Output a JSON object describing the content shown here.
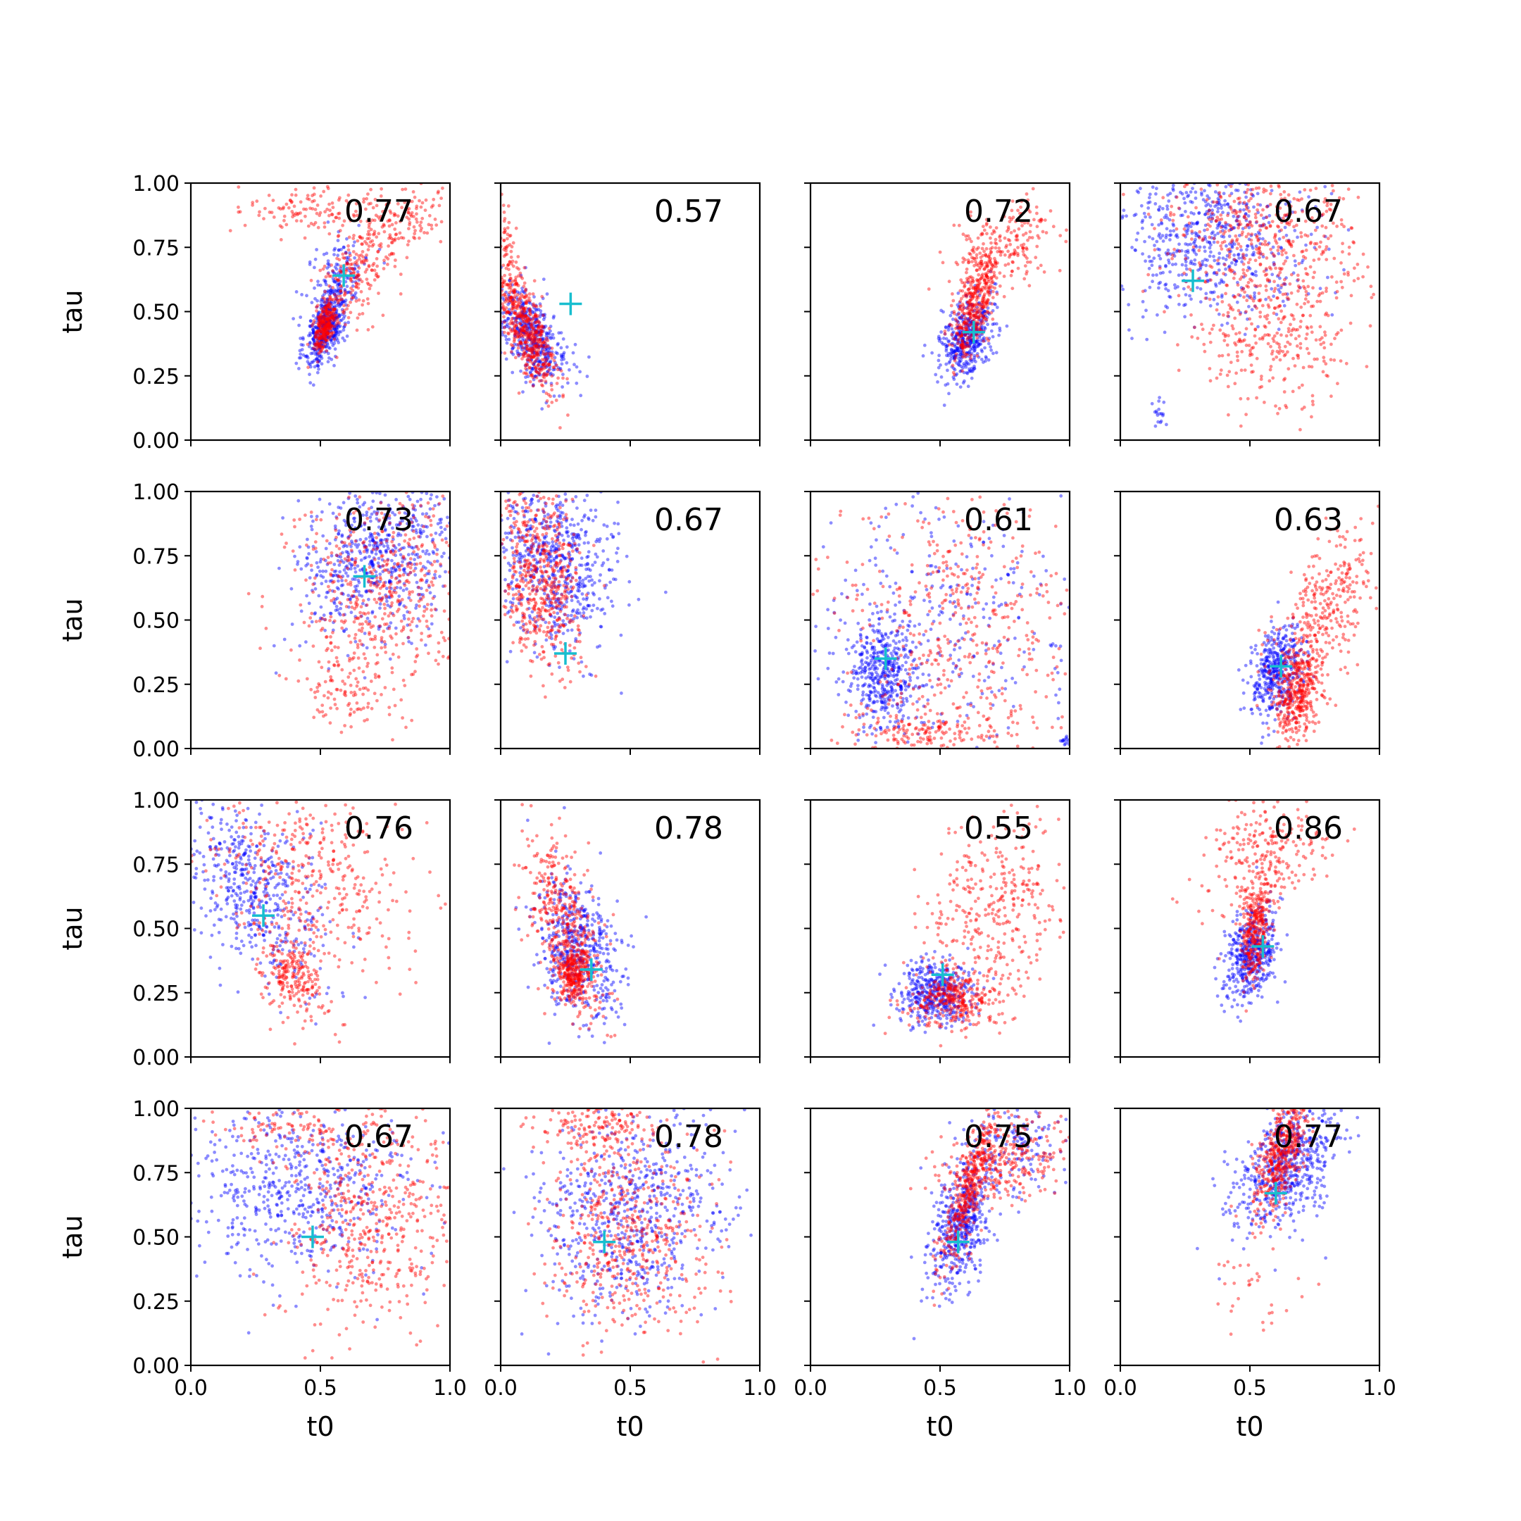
{
  "colors": {
    "blue": "#0000ff",
    "red": "#ff0000",
    "marker": "#17becf",
    "axes": "#000000"
  },
  "chart_data": {
    "type": "scatter",
    "grid": false,
    "layout": "4x4 grid of scatter panels",
    "xlabel": "t0",
    "ylabel": "tau",
    "xlim": [
      0,
      1
    ],
    "ylim": [
      0,
      1
    ],
    "xticks": [
      "0.0",
      "0.5",
      "1.0"
    ],
    "yticks": [
      "0.00",
      "0.25",
      "0.50",
      "0.75",
      "1.00"
    ],
    "series_colors": [
      "blue",
      "red"
    ],
    "marker_style": "cyan plus",
    "panels": [
      {
        "score": "0.77",
        "marker": [
          0.59,
          0.64
        ],
        "blue": [
          {
            "cx": 0.52,
            "cy": 0.44,
            "sx": 0.04,
            "sy": 0.08,
            "n": 420,
            "rho": 0.5
          },
          {
            "cx": 0.57,
            "cy": 0.62,
            "sx": 0.06,
            "sy": 0.1,
            "n": 150,
            "rho": 0.5
          }
        ],
        "red": [
          {
            "cx": 0.52,
            "cy": 0.45,
            "sx": 0.02,
            "sy": 0.05,
            "n": 250,
            "rho": 0.6
          },
          {
            "cx": 0.65,
            "cy": 0.66,
            "sx": 0.09,
            "sy": 0.12,
            "n": 260,
            "rho": 0.6
          },
          {
            "cx": 0.45,
            "cy": 0.9,
            "sx": 0.12,
            "sy": 0.05,
            "n": 120,
            "rho": 0
          },
          {
            "cx": 0.85,
            "cy": 0.88,
            "sx": 0.08,
            "sy": 0.06,
            "n": 90,
            "rho": 0
          }
        ]
      },
      {
        "score": "0.57",
        "marker": [
          0.27,
          0.53
        ],
        "blue": [
          {
            "cx": 0.12,
            "cy": 0.4,
            "sx": 0.07,
            "sy": 0.1,
            "n": 480,
            "rho": -0.6
          }
        ],
        "red": [
          {
            "cx": 0.1,
            "cy": 0.42,
            "sx": 0.06,
            "sy": 0.12,
            "n": 500,
            "rho": -0.7
          },
          {
            "cx": 0.03,
            "cy": 0.7,
            "sx": 0.02,
            "sy": 0.1,
            "n": 80,
            "rho": 0
          }
        ]
      },
      {
        "score": "0.72",
        "marker": [
          0.63,
          0.42
        ],
        "blue": [
          {
            "cx": 0.6,
            "cy": 0.4,
            "sx": 0.05,
            "sy": 0.08,
            "n": 450,
            "rho": 0.3
          }
        ],
        "red": [
          {
            "cx": 0.63,
            "cy": 0.52,
            "sx": 0.04,
            "sy": 0.1,
            "n": 380,
            "rho": 0.5
          },
          {
            "cx": 0.75,
            "cy": 0.75,
            "sx": 0.1,
            "sy": 0.08,
            "n": 220,
            "rho": 0.4
          }
        ]
      },
      {
        "score": "0.67",
        "marker": [
          0.28,
          0.62
        ],
        "blue": [
          {
            "cx": 0.35,
            "cy": 0.8,
            "sx": 0.2,
            "sy": 0.15,
            "n": 650,
            "rho": 0
          },
          {
            "cx": 0.15,
            "cy": 0.1,
            "sx": 0.02,
            "sy": 0.03,
            "n": 18,
            "rho": 0
          }
        ],
        "red": [
          {
            "cx": 0.55,
            "cy": 0.82,
            "sx": 0.2,
            "sy": 0.14,
            "n": 460,
            "rho": 0
          },
          {
            "cx": 0.6,
            "cy": 0.4,
            "sx": 0.15,
            "sy": 0.15,
            "n": 320,
            "rho": 0
          }
        ]
      },
      {
        "score": "0.73",
        "marker": [
          0.67,
          0.67
        ],
        "blue": [
          {
            "cx": 0.72,
            "cy": 0.75,
            "sx": 0.15,
            "sy": 0.16,
            "n": 650,
            "rho": 0.2
          }
        ],
        "red": [
          {
            "cx": 0.72,
            "cy": 0.6,
            "sx": 0.17,
            "sy": 0.2,
            "n": 520,
            "rho": 0.1
          },
          {
            "cx": 0.6,
            "cy": 0.2,
            "sx": 0.1,
            "sy": 0.06,
            "n": 80,
            "rho": 0
          }
        ]
      },
      {
        "score": "0.67",
        "marker": [
          0.25,
          0.37
        ],
        "blue": [
          {
            "cx": 0.2,
            "cy": 0.72,
            "sx": 0.12,
            "sy": 0.16,
            "n": 650,
            "rho": -0.2
          }
        ],
        "red": [
          {
            "cx": 0.15,
            "cy": 0.68,
            "sx": 0.08,
            "sy": 0.17,
            "n": 550,
            "rho": -0.3
          }
        ]
      },
      {
        "score": "0.61",
        "marker": [
          0.29,
          0.35
        ],
        "blue": [
          {
            "cx": 0.28,
            "cy": 0.28,
            "sx": 0.07,
            "sy": 0.1,
            "n": 420,
            "rho": 0
          },
          {
            "cx": 0.5,
            "cy": 0.5,
            "sx": 0.25,
            "sy": 0.28,
            "n": 320,
            "rho": 0
          },
          {
            "cx": 0.98,
            "cy": 0.03,
            "sx": 0.01,
            "sy": 0.01,
            "n": 15,
            "rho": 0
          }
        ],
        "red": [
          {
            "cx": 0.55,
            "cy": 0.45,
            "sx": 0.25,
            "sy": 0.28,
            "n": 480,
            "rho": 0
          },
          {
            "cx": 0.45,
            "cy": 0.06,
            "sx": 0.15,
            "sy": 0.04,
            "n": 140,
            "rho": 0
          }
        ]
      },
      {
        "score": "0.63",
        "marker": [
          0.62,
          0.32
        ],
        "blue": [
          {
            "cx": 0.6,
            "cy": 0.3,
            "sx": 0.05,
            "sy": 0.09,
            "n": 420,
            "rho": 0.2
          }
        ],
        "red": [
          {
            "cx": 0.68,
            "cy": 0.22,
            "sx": 0.05,
            "sy": 0.1,
            "n": 380,
            "rho": 0.2
          },
          {
            "cx": 0.78,
            "cy": 0.52,
            "sx": 0.1,
            "sy": 0.16,
            "n": 320,
            "rho": 0.6
          }
        ]
      },
      {
        "score": "0.76",
        "marker": [
          0.28,
          0.55
        ],
        "blue": [
          {
            "cx": 0.25,
            "cy": 0.65,
            "sx": 0.14,
            "sy": 0.18,
            "n": 500,
            "rho": -0.4
          }
        ],
        "red": [
          {
            "cx": 0.4,
            "cy": 0.3,
            "sx": 0.06,
            "sy": 0.08,
            "n": 220,
            "rho": -0.2
          },
          {
            "cx": 0.45,
            "cy": 0.7,
            "sx": 0.2,
            "sy": 0.2,
            "n": 420,
            "rho": -0.2
          }
        ]
      },
      {
        "score": "0.78",
        "marker": [
          0.35,
          0.34
        ],
        "blue": [
          {
            "cx": 0.3,
            "cy": 0.42,
            "sx": 0.08,
            "sy": 0.14,
            "n": 500,
            "rho": -0.3
          }
        ],
        "red": [
          {
            "cx": 0.25,
            "cy": 0.5,
            "sx": 0.08,
            "sy": 0.18,
            "n": 420,
            "rho": -0.6
          },
          {
            "cx": 0.28,
            "cy": 0.33,
            "sx": 0.03,
            "sy": 0.05,
            "n": 250,
            "rho": 0
          }
        ]
      },
      {
        "score": "0.55",
        "marker": [
          0.51,
          0.32
        ],
        "blue": [
          {
            "cx": 0.48,
            "cy": 0.25,
            "sx": 0.07,
            "sy": 0.06,
            "n": 420,
            "rho": 0
          }
        ],
        "red": [
          {
            "cx": 0.55,
            "cy": 0.22,
            "sx": 0.08,
            "sy": 0.05,
            "n": 300,
            "rho": 0
          },
          {
            "cx": 0.7,
            "cy": 0.55,
            "sx": 0.14,
            "sy": 0.2,
            "n": 360,
            "rho": 0.3
          }
        ]
      },
      {
        "score": "0.86",
        "marker": [
          0.55,
          0.43
        ],
        "blue": [
          {
            "cx": 0.5,
            "cy": 0.4,
            "sx": 0.05,
            "sy": 0.09,
            "n": 450,
            "rho": 0.3
          }
        ],
        "red": [
          {
            "cx": 0.52,
            "cy": 0.48,
            "sx": 0.03,
            "sy": 0.1,
            "n": 300,
            "rho": 0.3
          },
          {
            "cx": 0.55,
            "cy": 0.78,
            "sx": 0.12,
            "sy": 0.12,
            "n": 260,
            "rho": 0.2
          }
        ]
      },
      {
        "score": "0.67",
        "marker": [
          0.47,
          0.5
        ],
        "blue": [
          {
            "cx": 0.4,
            "cy": 0.7,
            "sx": 0.22,
            "sy": 0.18,
            "n": 600,
            "rho": 0
          }
        ],
        "red": [
          {
            "cx": 0.7,
            "cy": 0.55,
            "sx": 0.16,
            "sy": 0.22,
            "n": 500,
            "rho": 0
          },
          {
            "cx": 0.4,
            "cy": 0.92,
            "sx": 0.15,
            "sy": 0.05,
            "n": 100,
            "rho": 0
          }
        ]
      },
      {
        "score": "0.78",
        "marker": [
          0.4,
          0.48
        ],
        "blue": [
          {
            "cx": 0.5,
            "cy": 0.6,
            "sx": 0.18,
            "sy": 0.2,
            "n": 650,
            "rho": 0.1
          }
        ],
        "red": [
          {
            "cx": 0.5,
            "cy": 0.5,
            "sx": 0.15,
            "sy": 0.2,
            "n": 500,
            "rho": 0
          },
          {
            "cx": 0.35,
            "cy": 0.92,
            "sx": 0.12,
            "sy": 0.05,
            "n": 150,
            "rho": 0
          }
        ]
      },
      {
        "score": "0.75",
        "marker": [
          0.57,
          0.48
        ],
        "blue": [
          {
            "cx": 0.58,
            "cy": 0.55,
            "sx": 0.06,
            "sy": 0.13,
            "n": 500,
            "rho": 0.4
          },
          {
            "cx": 0.78,
            "cy": 0.85,
            "sx": 0.1,
            "sy": 0.1,
            "n": 150,
            "rho": 0
          }
        ],
        "red": [
          {
            "cx": 0.62,
            "cy": 0.7,
            "sx": 0.06,
            "sy": 0.16,
            "n": 420,
            "rho": 0.8
          },
          {
            "cx": 0.78,
            "cy": 0.8,
            "sx": 0.13,
            "sy": 0.08,
            "n": 250,
            "rho": 0.3
          }
        ]
      },
      {
        "score": "0.77",
        "marker": [
          0.6,
          0.67
        ],
        "blue": [
          {
            "cx": 0.65,
            "cy": 0.78,
            "sx": 0.1,
            "sy": 0.13,
            "n": 600,
            "rho": 0.4
          }
        ],
        "red": [
          {
            "cx": 0.62,
            "cy": 0.82,
            "sx": 0.05,
            "sy": 0.12,
            "n": 450,
            "rho": 0.6
          },
          {
            "cx": 0.5,
            "cy": 0.3,
            "sx": 0.12,
            "sy": 0.1,
            "n": 30,
            "rho": 0
          }
        ]
      }
    ]
  }
}
